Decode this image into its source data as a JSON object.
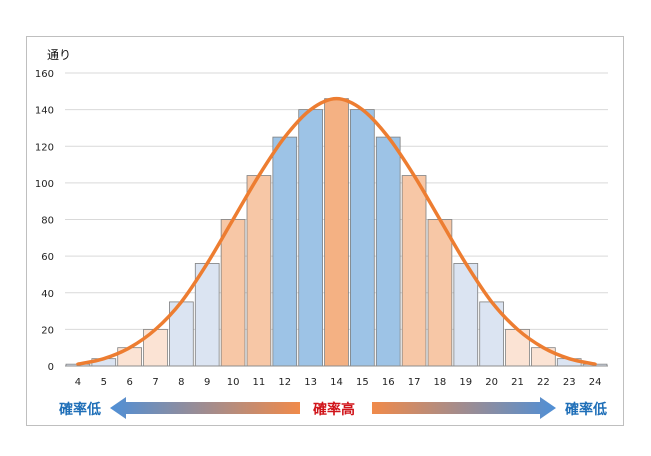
{
  "chart_data": {
    "type": "bar",
    "ylabel": "通り",
    "ylim": [
      0,
      160
    ],
    "yticks": [
      0,
      20,
      40,
      60,
      80,
      100,
      120,
      140,
      160
    ],
    "grid": true,
    "categories": [
      "4",
      "5",
      "6",
      "7",
      "8",
      "9",
      "10",
      "11",
      "12",
      "13",
      "14",
      "15",
      "16",
      "17",
      "18",
      "19",
      "20",
      "21",
      "22",
      "23",
      "24"
    ],
    "values": [
      1,
      4,
      10,
      20,
      35,
      56,
      80,
      104,
      125,
      140,
      146,
      140,
      125,
      104,
      80,
      56,
      35,
      20,
      10,
      4,
      1
    ],
    "bar_colors": [
      "#dbe4f2",
      "#dbe4f2",
      "#fbe3d4",
      "#fbe3d4",
      "#dbe4f2",
      "#dbe4f2",
      "#f7c7a6",
      "#f7c7a6",
      "#9dc3e6",
      "#9dc3e6",
      "#f4b183",
      "#9dc3e6",
      "#9dc3e6",
      "#f7c7a6",
      "#f7c7a6",
      "#dbe4f2",
      "#dbe4f2",
      "#fbe3d4",
      "#fbe3d4",
      "#dbe4f2",
      "#dbe4f2"
    ],
    "curve": {
      "x": [
        4,
        5,
        6,
        7,
        8,
        9,
        10,
        11,
        12,
        13,
        14,
        15,
        16,
        17,
        18,
        19,
        20,
        21,
        22,
        23,
        24
      ],
      "y": [
        1,
        4,
        10,
        20,
        35,
        56,
        80,
        104,
        125,
        140,
        146,
        140,
        125,
        104,
        80,
        56,
        35,
        20,
        10,
        4,
        1
      ],
      "color": "#ed7d31"
    }
  },
  "caption": {
    "left": "確率低",
    "center": "確率高",
    "right": "確率低",
    "low_color": "#1f6fb8",
    "high_color": "#d0141a"
  }
}
